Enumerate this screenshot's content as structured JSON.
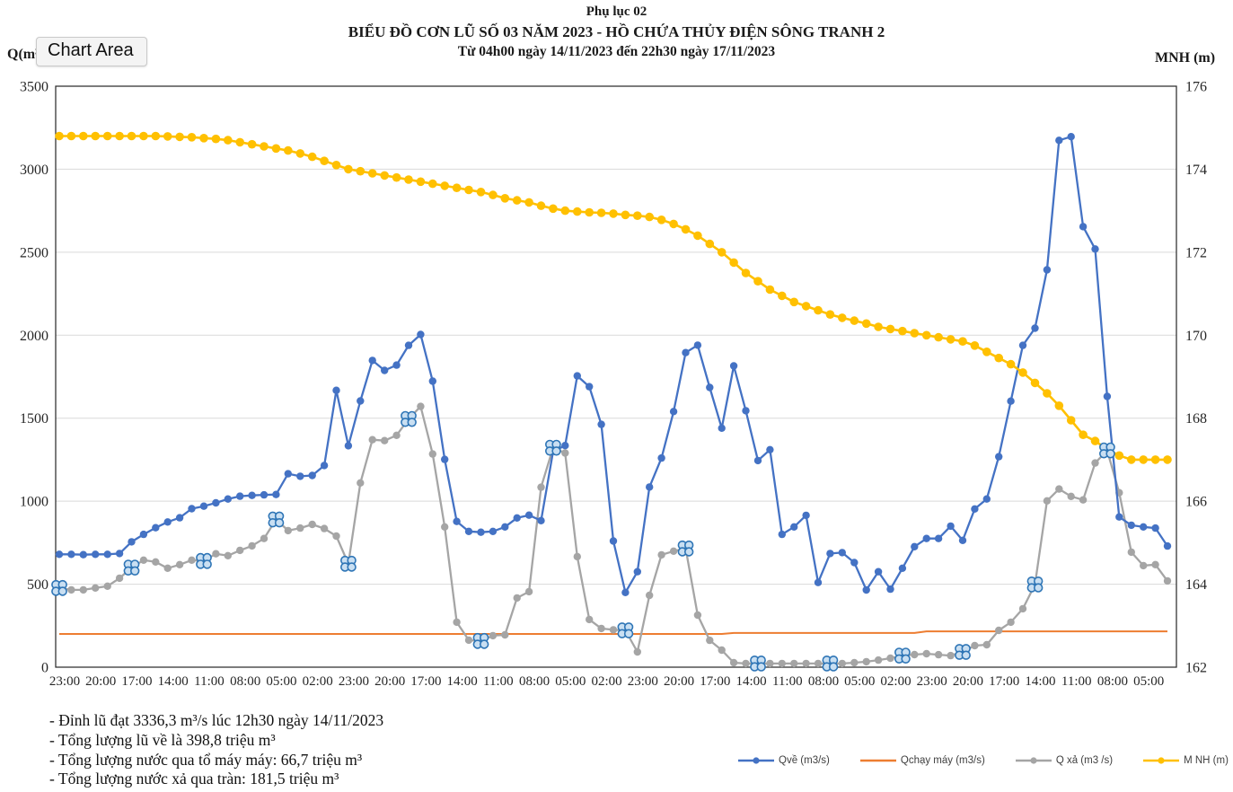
{
  "header": {
    "line1": "Phụ lục 02",
    "line2": "BIỂU ĐỒ CƠN LŨ SỐ 03 NĂM 2023 - HỒ CHỨA THỦY ĐIỆN SÔNG TRANH 2",
    "line3": "Từ 04h00 ngày 14/11/2023 đến 22h30 ngày 17/11/2023"
  },
  "tooltip": {
    "label": "Chart Area"
  },
  "axes": {
    "left_title": "Q(m³",
    "right_title": "MNH (m)",
    "left_ticks": [
      "3500",
      "3000",
      "2500",
      "2000",
      "1500",
      "1000",
      "500",
      "0"
    ],
    "right_ticks": [
      "176",
      "174",
      "172",
      "170",
      "168",
      "166",
      "164",
      "162"
    ]
  },
  "notes": [
    "- Đỉnh lũ đạt 3336,3 m³/s lúc 12h30 ngày 14/11/2023",
    "- Tổng lượng lũ về là 398,8 triệu m³",
    "- Tổng lượng nước qua tổ máy máy: 66,7 triệu m³",
    "- Tổng lượng nước xả qua tràn: 181,5 triệu m³"
  ],
  "colors": {
    "qve": "#4472C4",
    "qchaymay": "#ED7D31",
    "qxa": "#A5A5A5",
    "mnh": "#FFC000",
    "gridline": "#D9D9D9",
    "plot_border": "#262626",
    "flower_fill": "#C9DFF2",
    "flower_stroke": "#2E75B6"
  },
  "chart_data": {
    "type": "line",
    "title": "BIỂU ĐỒ CƠN LŨ SỐ 03 NĂM 2023 - HỒ CHỨA THỦY ĐIỆN SÔNG TRANH 2",
    "subtitle": "Từ 04h00 ngày 14/11/2023 đến 22h30 ngày 17/11/2023",
    "y_left": {
      "min": 0,
      "max": 3500,
      "step": 500
    },
    "y_right": {
      "min": 162,
      "max": 176,
      "step": 2
    },
    "grid": "horizontal",
    "legend_position": "bottom",
    "x_tick_labels": [
      "23:00",
      "20:00",
      "17:00",
      "14:00",
      "11:00",
      "08:00",
      "05:00",
      "02:00",
      "23:00",
      "20:00",
      "17:00",
      "14:00",
      "11:00",
      "08:00",
      "05:00",
      "02:00",
      "23:00",
      "20:00",
      "17:00",
      "14:00",
      "11:00",
      "08:00",
      "05:00",
      "02:00",
      "23:00",
      "20:00",
      "17:00",
      "14:00",
      "11:00",
      "08:00",
      "05:00"
    ],
    "x_label_every": 3,
    "series": [
      {
        "name": "Qchạy máy (m3/s)",
        "axis": "left",
        "marker": "none",
        "values": [
          200,
          200,
          200,
          200,
          200,
          200,
          200,
          200,
          200,
          200,
          200,
          200,
          200,
          200,
          200,
          200,
          200,
          200,
          200,
          200,
          200,
          200,
          200,
          200,
          200,
          200,
          200,
          200,
          200,
          200,
          200,
          200,
          200,
          200,
          200,
          200,
          200,
          200,
          200,
          200,
          200,
          200,
          200,
          200,
          200,
          200,
          200,
          200,
          200,
          200,
          200,
          200,
          200,
          200,
          200,
          200,
          206,
          206,
          206,
          206,
          206,
          206,
          206,
          206,
          206,
          206,
          206,
          206,
          206,
          206,
          206,
          206,
          216,
          216,
          216,
          216,
          216,
          216,
          216,
          216,
          216,
          216,
          216,
          216,
          216,
          216,
          216,
          216,
          216,
          216,
          216,
          216,
          216
        ]
      },
      {
        "name": "Q xả (m3 /s)",
        "axis": "left",
        "marker": "circle",
        "special_marker_indices": [
          0,
          6,
          12,
          18,
          24,
          29,
          35,
          41,
          47,
          52,
          58,
          64,
          70,
          75,
          81,
          87
        ],
        "values": [
          477,
          466,
          466,
          477,
          488,
          536,
          600,
          645,
          634,
          596,
          618,
          645,
          640,
          683,
          672,
          704,
          731,
          775,
          890,
          823,
          838,
          860,
          835,
          790,
          623,
          1110,
          1370,
          1365,
          1397,
          1495,
          1571,
          1284,
          845,
          271,
          163,
          158,
          190,
          195,
          417,
          455,
          1084,
          1322,
          1290,
          666,
          287,
          233,
          225,
          222,
          92,
          433,
          677,
          699,
          715,
          314,
          162,
          103,
          27,
          22,
          22,
          22,
          22,
          22,
          22,
          22,
          22,
          22,
          27,
          33,
          43,
          54,
          70,
          76,
          81,
          75,
          70,
          92,
          130,
          135,
          222,
          271,
          352,
          498,
          1002,
          1073,
          1029,
          1008,
          1230,
          1306,
          1051,
          693,
          612,
          618,
          520
        ]
      },
      {
        "name": "Qvề (m3/s)",
        "axis": "left",
        "marker": "circle",
        "values": [
          680,
          680,
          678,
          680,
          680,
          685,
          755,
          800,
          840,
          875,
          900,
          955,
          970,
          990,
          1013,
          1030,
          1035,
          1038,
          1040,
          1165,
          1150,
          1155,
          1215,
          1668,
          1334,
          1604,
          1848,
          1788,
          1820,
          1939,
          2004,
          1723,
          1252,
          878,
          818,
          813,
          818,
          845,
          899,
          916,
          883,
          1300,
          1335,
          1755,
          1690,
          1463,
          760,
          450,
          575,
          1085,
          1260,
          1540,
          1895,
          1940,
          1685,
          1440,
          1815,
          1545,
          1245,
          1310,
          800,
          845,
          915,
          510,
          685,
          690,
          630,
          465,
          575,
          470,
          596,
          726,
          775,
          775,
          850,
          764,
          953,
          1013,
          1268,
          1603,
          1939,
          2042,
          2394,
          3174,
          3196,
          2654,
          2519,
          1631,
          905,
          855,
          845,
          838,
          730
        ]
      },
      {
        "name": "M NH (m)",
        "axis": "right",
        "marker": "circle",
        "values": [
          174.8,
          174.8,
          174.8,
          174.8,
          174.8,
          174.8,
          174.8,
          174.8,
          174.8,
          174.79,
          174.78,
          174.77,
          174.75,
          174.73,
          174.7,
          174.65,
          174.6,
          174.55,
          174.5,
          174.45,
          174.38,
          174.3,
          174.2,
          174.1,
          174.0,
          173.95,
          173.9,
          173.85,
          173.8,
          173.75,
          173.7,
          173.65,
          173.6,
          173.55,
          173.5,
          173.45,
          173.38,
          173.3,
          173.25,
          173.2,
          173.12,
          173.05,
          173.0,
          172.98,
          172.96,
          172.95,
          172.93,
          172.9,
          172.88,
          172.85,
          172.78,
          172.68,
          172.55,
          172.4,
          172.2,
          172.0,
          171.75,
          171.5,
          171.3,
          171.1,
          170.95,
          170.8,
          170.7,
          170.6,
          170.5,
          170.42,
          170.35,
          170.28,
          170.2,
          170.15,
          170.1,
          170.05,
          170.0,
          169.95,
          169.9,
          169.85,
          169.75,
          169.6,
          169.45,
          169.3,
          169.1,
          168.85,
          168.6,
          168.3,
          167.95,
          167.6,
          167.45,
          167.25,
          167.1,
          167.0,
          167.0,
          167.0,
          167.0
        ]
      }
    ],
    "peak_annotation": "Đỉnh lũ đạt 3336,3 m³/s lúc 12h30 ngày 14/11/2023"
  }
}
